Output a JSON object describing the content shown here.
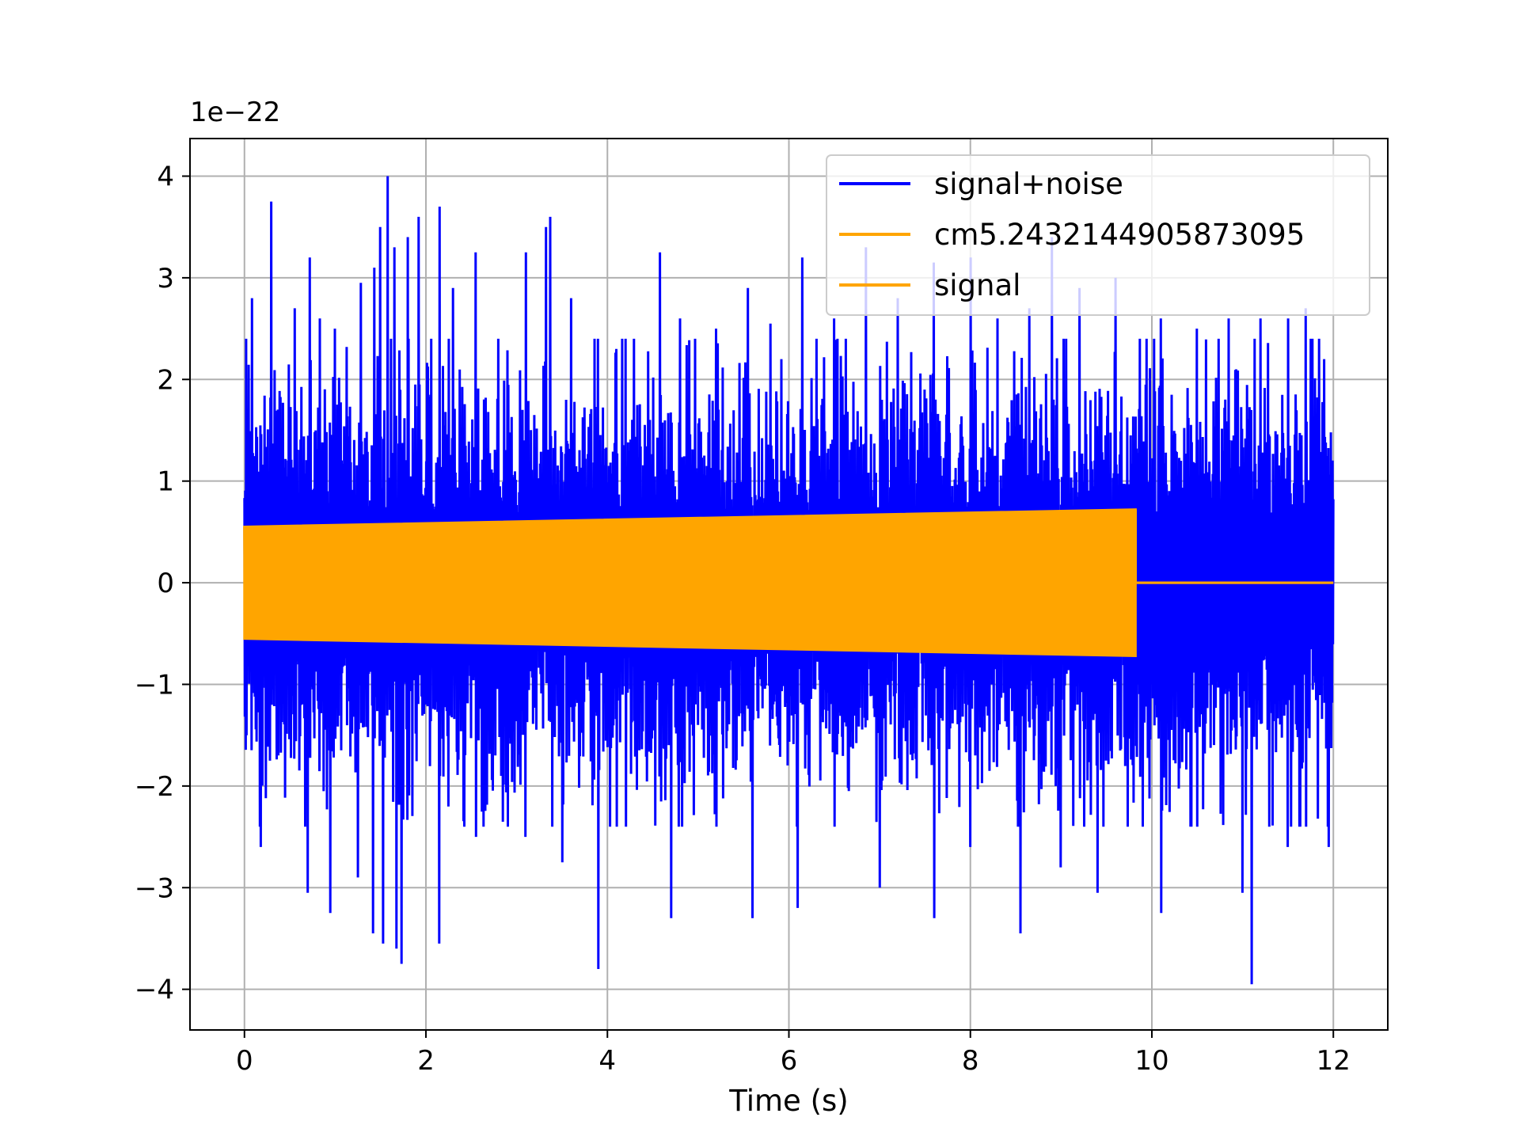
{
  "chart_data": {
    "type": "line",
    "title": "",
    "xlabel": "Time (s)",
    "ylabel": "",
    "y_offset_label": "1e−22",
    "xlim": [
      -0.6,
      12.6
    ],
    "ylim": [
      -4.4,
      4.37
    ],
    "x_ticks": [
      0,
      2,
      4,
      6,
      8,
      10,
      12
    ],
    "x_tick_labels": [
      "0",
      "2",
      "4",
      "6",
      "8",
      "10",
      "12"
    ],
    "y_ticks": [
      -4,
      -3,
      -2,
      -1,
      0,
      1,
      2,
      3,
      4
    ],
    "y_tick_labels": [
      "−4",
      "−3",
      "−2",
      "−1",
      "0",
      "1",
      "2",
      "3",
      "4"
    ],
    "grid": true,
    "legend_position": "top-right",
    "series": [
      {
        "name": "signal+noise",
        "color": "#0000ff",
        "description_values": {
          "x_range": [
            0,
            12
          ],
          "envelope_top_typical": 1.9,
          "envelope_bottom_typical": -1.9,
          "max": 4.0,
          "min": -4.0
        },
        "peaks": [
          {
            "x": 0.02,
            "y": 2.4
          },
          {
            "x": 0.08,
            "y": 2.8
          },
          {
            "x": 0.3,
            "y": 3.75
          },
          {
            "x": 0.55,
            "y": 2.7
          },
          {
            "x": 0.72,
            "y": 3.2
          },
          {
            "x": 0.83,
            "y": 2.6
          },
          {
            "x": 1.0,
            "y": 2.5
          },
          {
            "x": 1.28,
            "y": 2.95
          },
          {
            "x": 1.43,
            "y": 3.1
          },
          {
            "x": 1.5,
            "y": 3.5
          },
          {
            "x": 1.58,
            "y": 4.0
          },
          {
            "x": 1.65,
            "y": 3.3
          },
          {
            "x": 1.8,
            "y": 3.4
          },
          {
            "x": 1.92,
            "y": 3.6
          },
          {
            "x": 2.15,
            "y": 3.7
          },
          {
            "x": 2.3,
            "y": 2.9
          },
          {
            "x": 2.55,
            "y": 3.25
          },
          {
            "x": 2.8,
            "y": 2.4
          },
          {
            "x": 3.1,
            "y": 3.25
          },
          {
            "x": 3.32,
            "y": 3.5
          },
          {
            "x": 3.37,
            "y": 3.6
          },
          {
            "x": 3.6,
            "y": 2.8
          },
          {
            "x": 3.9,
            "y": 2.4
          },
          {
            "x": 4.2,
            "y": 2.4
          },
          {
            "x": 4.58,
            "y": 3.25
          },
          {
            "x": 4.8,
            "y": 2.6
          },
          {
            "x": 5.2,
            "y": 2.5
          },
          {
            "x": 5.55,
            "y": 2.9
          },
          {
            "x": 5.8,
            "y": 2.55
          },
          {
            "x": 6.15,
            "y": 3.2
          },
          {
            "x": 6.5,
            "y": 2.6
          },
          {
            "x": 6.85,
            "y": 3.3
          },
          {
            "x": 7.2,
            "y": 2.8
          },
          {
            "x": 7.6,
            "y": 3.15
          },
          {
            "x": 8.0,
            "y": 3.2
          },
          {
            "x": 8.3,
            "y": 2.6
          },
          {
            "x": 8.65,
            "y": 2.7
          },
          {
            "x": 8.9,
            "y": 3.4
          },
          {
            "x": 9.2,
            "y": 2.9
          },
          {
            "x": 9.6,
            "y": 3.0
          },
          {
            "x": 10.1,
            "y": 2.6
          },
          {
            "x": 10.5,
            "y": 2.5
          },
          {
            "x": 10.85,
            "y": 2.6
          },
          {
            "x": 11.2,
            "y": 2.6
          },
          {
            "x": 11.5,
            "y": 2.6
          },
          {
            "x": 11.7,
            "y": 2.7
          },
          {
            "x": 11.9,
            "y": 2.2
          }
        ],
        "troughs": [
          {
            "x": 0.02,
            "y": -1.5
          },
          {
            "x": 0.18,
            "y": -2.6
          },
          {
            "x": 0.7,
            "y": -3.05
          },
          {
            "x": 0.95,
            "y": -3.25
          },
          {
            "x": 1.25,
            "y": -2.9
          },
          {
            "x": 1.42,
            "y": -3.45
          },
          {
            "x": 1.53,
            "y": -3.55
          },
          {
            "x": 1.68,
            "y": -3.6
          },
          {
            "x": 1.73,
            "y": -3.75
          },
          {
            "x": 2.15,
            "y": -3.55
          },
          {
            "x": 2.55,
            "y": -2.5
          },
          {
            "x": 3.1,
            "y": -2.5
          },
          {
            "x": 3.5,
            "y": -2.75
          },
          {
            "x": 3.9,
            "y": -3.8
          },
          {
            "x": 4.2,
            "y": -2.4
          },
          {
            "x": 4.7,
            "y": -3.3
          },
          {
            "x": 5.2,
            "y": -2.4
          },
          {
            "x": 5.6,
            "y": -3.3
          },
          {
            "x": 6.1,
            "y": -3.2
          },
          {
            "x": 6.5,
            "y": -2.4
          },
          {
            "x": 7.0,
            "y": -3.0
          },
          {
            "x": 7.6,
            "y": -3.3
          },
          {
            "x": 8.0,
            "y": -2.6
          },
          {
            "x": 8.55,
            "y": -3.45
          },
          {
            "x": 9.0,
            "y": -2.8
          },
          {
            "x": 9.4,
            "y": -3.05
          },
          {
            "x": 9.9,
            "y": -2.4
          },
          {
            "x": 10.1,
            "y": -3.25
          },
          {
            "x": 10.5,
            "y": -2.4
          },
          {
            "x": 11.0,
            "y": -3.05
          },
          {
            "x": 11.1,
            "y": -3.95
          },
          {
            "x": 11.5,
            "y": -2.6
          },
          {
            "x": 11.95,
            "y": -2.6
          }
        ]
      },
      {
        "name": "cm5.2432144905873095",
        "color": "#ffa500",
        "description_values": {
          "x_range": [
            0,
            12
          ],
          "amplitude_at_start": 0.55,
          "amplitude_at_end_of_chirp": 0.72,
          "chirp_end_x": 9.82,
          "after_chirp_value": 0
        }
      },
      {
        "name": "signal",
        "color": "#ffa500",
        "description_values": {
          "x_range": [
            0,
            12
          ],
          "amplitude_at_start": 0.55,
          "amplitude_at_end_of_chirp": 0.72,
          "chirp_end_x": 9.82,
          "after_chirp_value": 0
        }
      }
    ]
  }
}
